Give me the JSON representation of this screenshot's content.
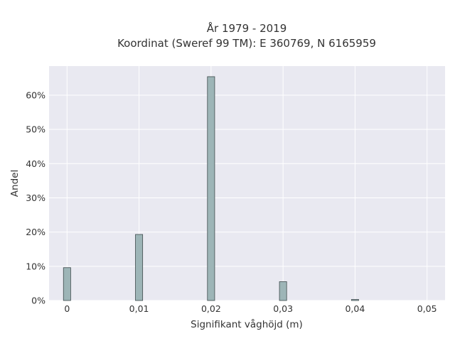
{
  "chart_data": {
    "type": "bar",
    "title_lines": [
      "År 1979 - 2019",
      "Koordinat (Sweref 99 TM): E 360769, N 6165959"
    ],
    "xlabel": "Signifikant våghöjd (m)",
    "ylabel": "Andel",
    "x_ticks": [
      {
        "value": 0,
        "label": "0"
      },
      {
        "value": 0.01,
        "label": "0,01"
      },
      {
        "value": 0.02,
        "label": "0,02"
      },
      {
        "value": 0.03,
        "label": "0,03"
      },
      {
        "value": 0.04,
        "label": "0,04"
      },
      {
        "value": 0.05,
        "label": "0,05"
      }
    ],
    "y_ticks": [
      {
        "value": 0,
        "label": "0%"
      },
      {
        "value": 10,
        "label": "10%"
      },
      {
        "value": 20,
        "label": "20%"
      },
      {
        "value": 30,
        "label": "30%"
      },
      {
        "value": 40,
        "label": "40%"
      },
      {
        "value": 50,
        "label": "50%"
      },
      {
        "value": 60,
        "label": "60%"
      }
    ],
    "xlim": [
      -0.0025,
      0.0525
    ],
    "ylim": [
      0,
      68.5
    ],
    "bar_width": 0.001,
    "x": [
      0,
      0.01,
      0.02,
      0.03,
      0.04
    ],
    "values": [
      9.6,
      19.3,
      65.4,
      5.5,
      0.3
    ],
    "grid": true,
    "colors": {
      "bar_fill": "#9db5b7",
      "bar_stroke": "#3d4a4b",
      "plot_background": "#e9e9f1",
      "grid": "#ffffff",
      "text": "#333333"
    }
  }
}
